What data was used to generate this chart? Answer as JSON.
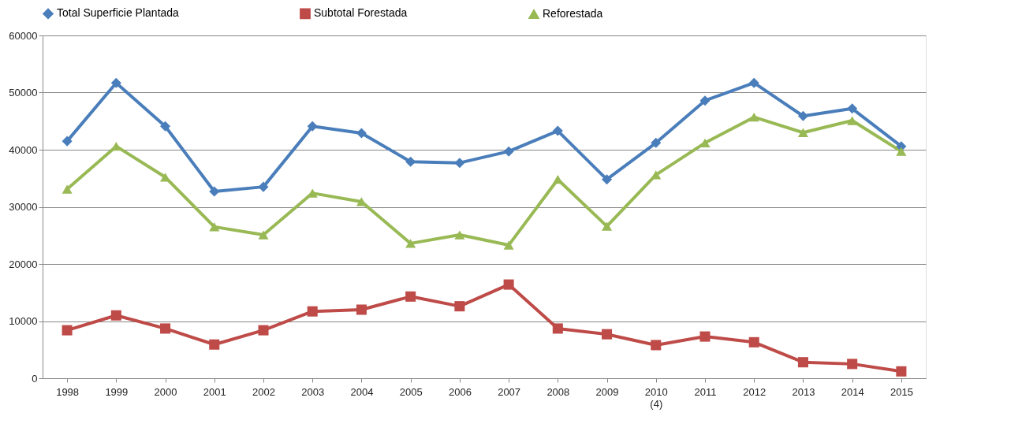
{
  "chart_data": {
    "type": "line",
    "categories": [
      "1998",
      "1999",
      "2000",
      "2001",
      "2002",
      "2003",
      "2004",
      "2005",
      "2006",
      "2007",
      "2008",
      "2009",
      "2010 (4)",
      "2011",
      "2012",
      "2013",
      "2014",
      "2015"
    ],
    "series": [
      {
        "name": "Total Superficie Plantada",
        "color": "#4a7ebb",
        "marker": "diamond",
        "values": [
          41500,
          51700,
          44100,
          32700,
          33500,
          44100,
          42900,
          37900,
          37700,
          39700,
          43300,
          34800,
          41200,
          48600,
          51700,
          45900,
          47200,
          40600
        ]
      },
      {
        "name": "Subtotal Forestada",
        "color": "#be4b48",
        "marker": "square",
        "values": [
          8400,
          11000,
          8700,
          5900,
          8400,
          11700,
          12000,
          14300,
          12600,
          16400,
          8700,
          7700,
          5800,
          7300,
          6300,
          2800,
          2500,
          1200
        ]
      },
      {
        "name": "Reforestada",
        "color": "#98b954",
        "marker": "triangle",
        "values": [
          33100,
          40600,
          35200,
          26500,
          25100,
          32400,
          30900,
          23600,
          25100,
          23300,
          34800,
          26600,
          35600,
          41200,
          45700,
          43000,
          45100,
          39700
        ]
      }
    ],
    "ylim": [
      0,
      60000
    ],
    "yticks": [
      0,
      10000,
      20000,
      30000,
      40000,
      50000,
      60000
    ],
    "grid": "y",
    "legend": "top",
    "line_style": "solid"
  }
}
